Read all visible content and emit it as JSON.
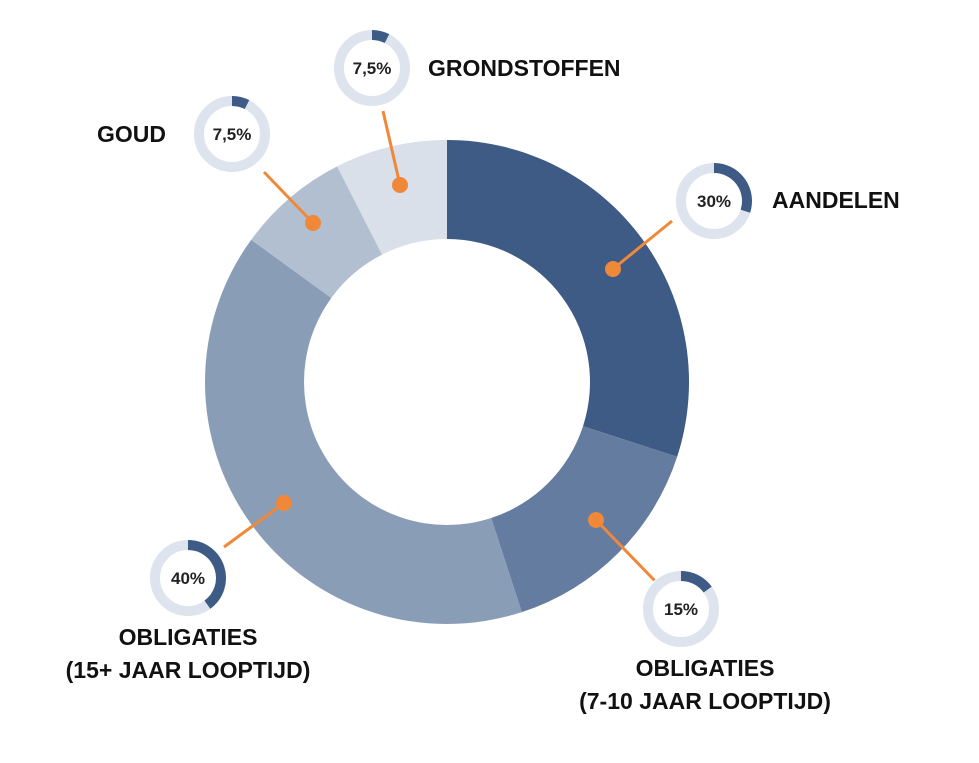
{
  "chart_data": {
    "type": "pie",
    "variant": "donut",
    "categories": [
      "AANDELEN",
      "OBLIGATIES (7-10 JAAR LOOPTIJD)",
      "OBLIGATIES (15+ JAAR LOOPTIJD)",
      "GOUD",
      "GRONDSTOFFEN"
    ],
    "values": [
      30,
      15,
      40,
      7.5,
      7.5
    ],
    "value_labels": [
      "30%",
      "15%",
      "40%",
      "7,5%",
      "7,5%"
    ],
    "label_lines": [
      [
        "AANDELEN"
      ],
      [
        "OBLIGATIES",
        "(7-10 JAAR LOOPTIJD)"
      ],
      [
        "OBLIGATIES",
        "(15+ JAAR LOOPTIJD)"
      ],
      [
        "GOUD"
      ],
      [
        "GRONDSTOFFEN"
      ]
    ],
    "colors": [
      "#3d5b85",
      "#637ca0",
      "#899db6",
      "#b2bfd1",
      "#d9e0ea"
    ],
    "accent_color": "#f0883a",
    "mini_ring_track": "#dde4ee",
    "mini_ring_fill": "#3d5b85",
    "legend": "callouts"
  }
}
